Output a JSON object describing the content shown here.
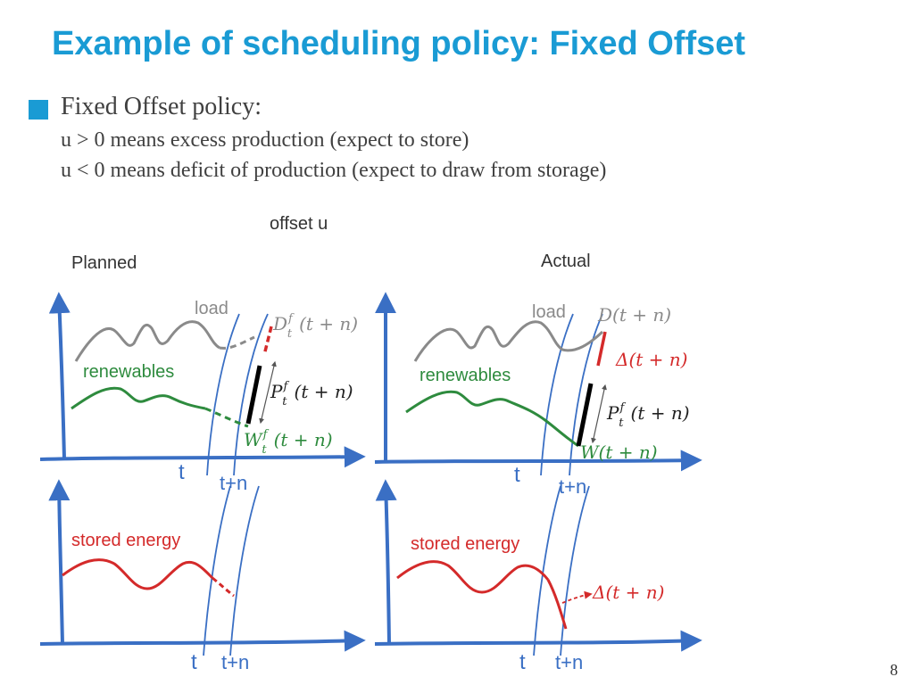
{
  "slide": {
    "title": "Example of scheduling policy: Fixed Offset",
    "bullet": "Fixed Offset policy:",
    "line_positive": "u > 0 means excess production (expect to store)",
    "line_negative": "u < 0 means deficit of production (expect to draw from storage)",
    "offset_label": "offset u",
    "page_number": "8"
  },
  "planned": {
    "heading": "Planned",
    "load": "load",
    "renewables": "renewables",
    "stored": "stored energy",
    "D": "D",
    "D_sup": "f",
    "D_sub": "t",
    "D_arg": "(t + n)",
    "P": "P",
    "P_sup": "f",
    "P_sub": "t",
    "P_arg": "(t + n)",
    "W": "W",
    "W_sup": "f",
    "W_sub": "t",
    "W_arg": "(t + n)",
    "t_top": "t",
    "tn_top": "t+n",
    "t_bottom": "t",
    "tn_bottom": "t+n"
  },
  "actual": {
    "heading": "Actual",
    "load": "load",
    "renewables": "renewables",
    "stored": "stored energy",
    "D_label": "D(t + n)",
    "delta_top": "Δ(t + n)",
    "P": "P",
    "P_sup": "f",
    "P_sub": "t",
    "P_arg": "(t + n)",
    "W_label": "W(t + n)",
    "delta_bottom": "Δ(t + n)",
    "t_top": "t",
    "tn_top": "t+n",
    "t_bottom": "t",
    "tn_bottom": "t+n"
  },
  "colors": {
    "title": "#1a9bd4",
    "axis": "#3a6fc4",
    "load": "#8a8a8a",
    "renewables": "#2e8b3e",
    "stored": "#d42a2a",
    "delta": "#d42a2a",
    "bar": "#000000"
  }
}
